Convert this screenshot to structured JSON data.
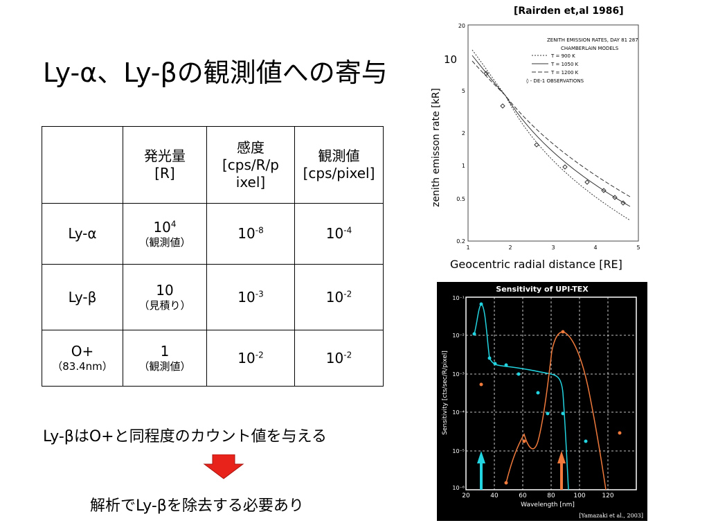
{
  "slide": {
    "title": "Ly-α、Ly-βの観測値への寄与",
    "caption_main": "Ly-βはO+と同程度のカウント値を与える",
    "caption_conclusion": "解析でLy-βを除去する必要あり"
  },
  "table": {
    "headers": [
      "",
      "発光量\n[R]",
      "感度\n[cps/R/pixel]",
      "観測値\n[cps/pixel]"
    ],
    "header_emission_line1": "発光量",
    "header_emission_line2": "[R]",
    "header_sens_line1": "感度",
    "header_sens_line2": "[cps/R/p",
    "header_sens_line3": "ixel]",
    "header_obs_line1": "観測値",
    "header_obs_line2": "[cps/pixel]",
    "rows": [
      {
        "name": "Ly-α",
        "name_sub": "",
        "emission_base": "10",
        "emission_exp": "4",
        "emission_note": "（観測値）",
        "sens_base": "10",
        "sens_exp": "-8",
        "obs_base": "10",
        "obs_exp": "-4"
      },
      {
        "name": "Ly-β",
        "name_sub": "",
        "emission_base": "10",
        "emission_exp": "",
        "emission_note": "（見積り）",
        "sens_base": "10",
        "sens_exp": "-3",
        "obs_base": "10",
        "obs_exp": "-2"
      },
      {
        "name": "O+",
        "name_sub": "（83.4nm）",
        "emission_base": "1",
        "emission_exp": "",
        "emission_note": "（観測値）",
        "sens_base": "10",
        "sens_exp": "-2",
        "obs_base": "10",
        "obs_exp": "-2"
      }
    ]
  },
  "figure1": {
    "citation": "[Rairden et,al 1986]",
    "inner_title_line1": "ZENITH EMISSION RATES, DAY 81 287",
    "inner_title_line2": "CHAMBERLAIN MODELS",
    "legend": [
      "T = 900 K",
      "T = 1050 K",
      "T = 1200 K",
      "◊ - DE-1 OBSERVATIONS"
    ],
    "ylabel": "zenith emisson rate [kR]",
    "xlabel": "Geocentric radial distance [RE]",
    "overlay_tick": "10",
    "y_ticks": [
      "20",
      "10",
      "5",
      "2",
      "1",
      "0.5",
      "0.2"
    ],
    "x_ticks": [
      "1",
      "2",
      "3",
      "4",
      "5"
    ]
  },
  "figure2": {
    "title": "Sensitivity of UPI-TEX",
    "ylabel": "Sensitivity [cts/sec/R/pixel]",
    "xlabel": "Wavelength [nm]",
    "citation": "[Yamazaki et al., 2003]",
    "y_ticks": [
      "10⁻¹",
      "10⁻²",
      "10⁻³",
      "10⁻⁴",
      "10⁻⁵",
      "10⁻⁶"
    ],
    "x_ticks": [
      "20",
      "40",
      "60",
      "80",
      "100",
      "120"
    ],
    "colors": {
      "cyan": "#22d3e0",
      "orange": "#f07a3c"
    }
  },
  "arrow_color": "#e8231b"
}
